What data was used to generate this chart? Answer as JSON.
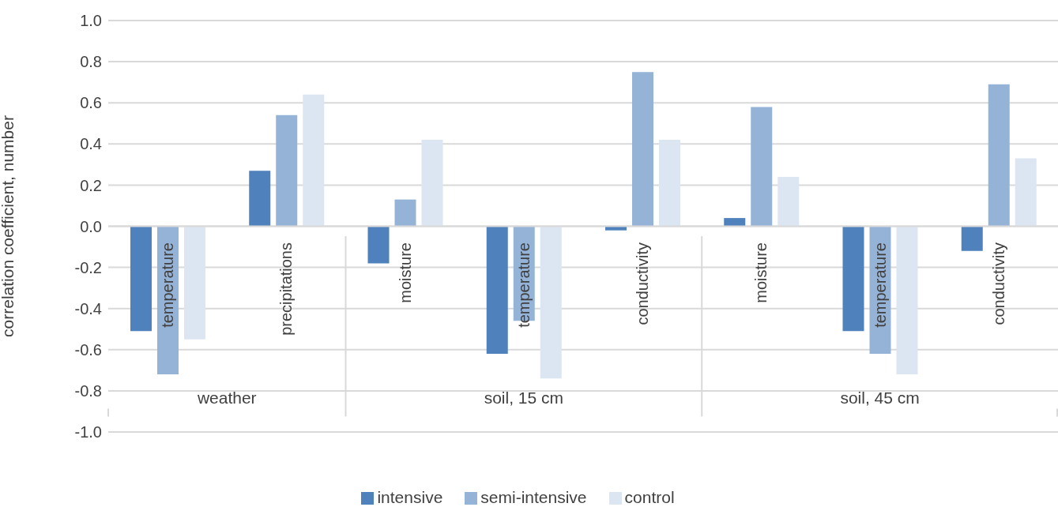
{
  "chart_data": {
    "type": "bar",
    "ylabel": "correlation coefficient, number",
    "categories": [
      "temperature",
      "precipitations",
      "moisture",
      "temperature",
      "conductivity",
      "moisture",
      "temperature",
      "conductivity"
    ],
    "series": [
      {
        "name": "intensive",
        "color": "#4f81bd",
        "values": [
          -0.51,
          0.27,
          -0.18,
          -0.62,
          -0.02,
          0.04,
          -0.51,
          -0.12
        ]
      },
      {
        "name": "semi-intensive",
        "color": "#95b3d7",
        "values": [
          -0.72,
          0.54,
          0.13,
          -0.46,
          0.75,
          0.58,
          -0.62,
          0.69
        ]
      },
      {
        "name": "control",
        "color": "#dce6f2",
        "values": [
          -0.55,
          0.64,
          0.42,
          -0.74,
          0.42,
          0.24,
          -0.72,
          0.33
        ]
      }
    ],
    "annotations": [
      "weather",
      "soil, 15 cm",
      "soil, 45 cm"
    ],
    "ylim": [
      -1,
      1
    ],
    "yticks": [
      {
        "value": -1,
        "label": "-1.0"
      },
      {
        "value": -0.8,
        "label": "-0.8"
      },
      {
        "value": -0.6,
        "label": "-0.6"
      },
      {
        "value": -0.4,
        "label": "-0.4"
      },
      {
        "value": -0.2,
        "label": "-0.2"
      },
      {
        "value": 0,
        "label": "0.0"
      },
      {
        "value": 0.2,
        "label": "0.2"
      },
      {
        "value": 0.4,
        "label": "0.4"
      },
      {
        "value": 0.6,
        "label": "0.6"
      },
      {
        "value": 0.8,
        "label": "0.8"
      },
      {
        "value": 1,
        "label": "1.0"
      }
    ],
    "grid": "y",
    "legend": "bottom"
  }
}
